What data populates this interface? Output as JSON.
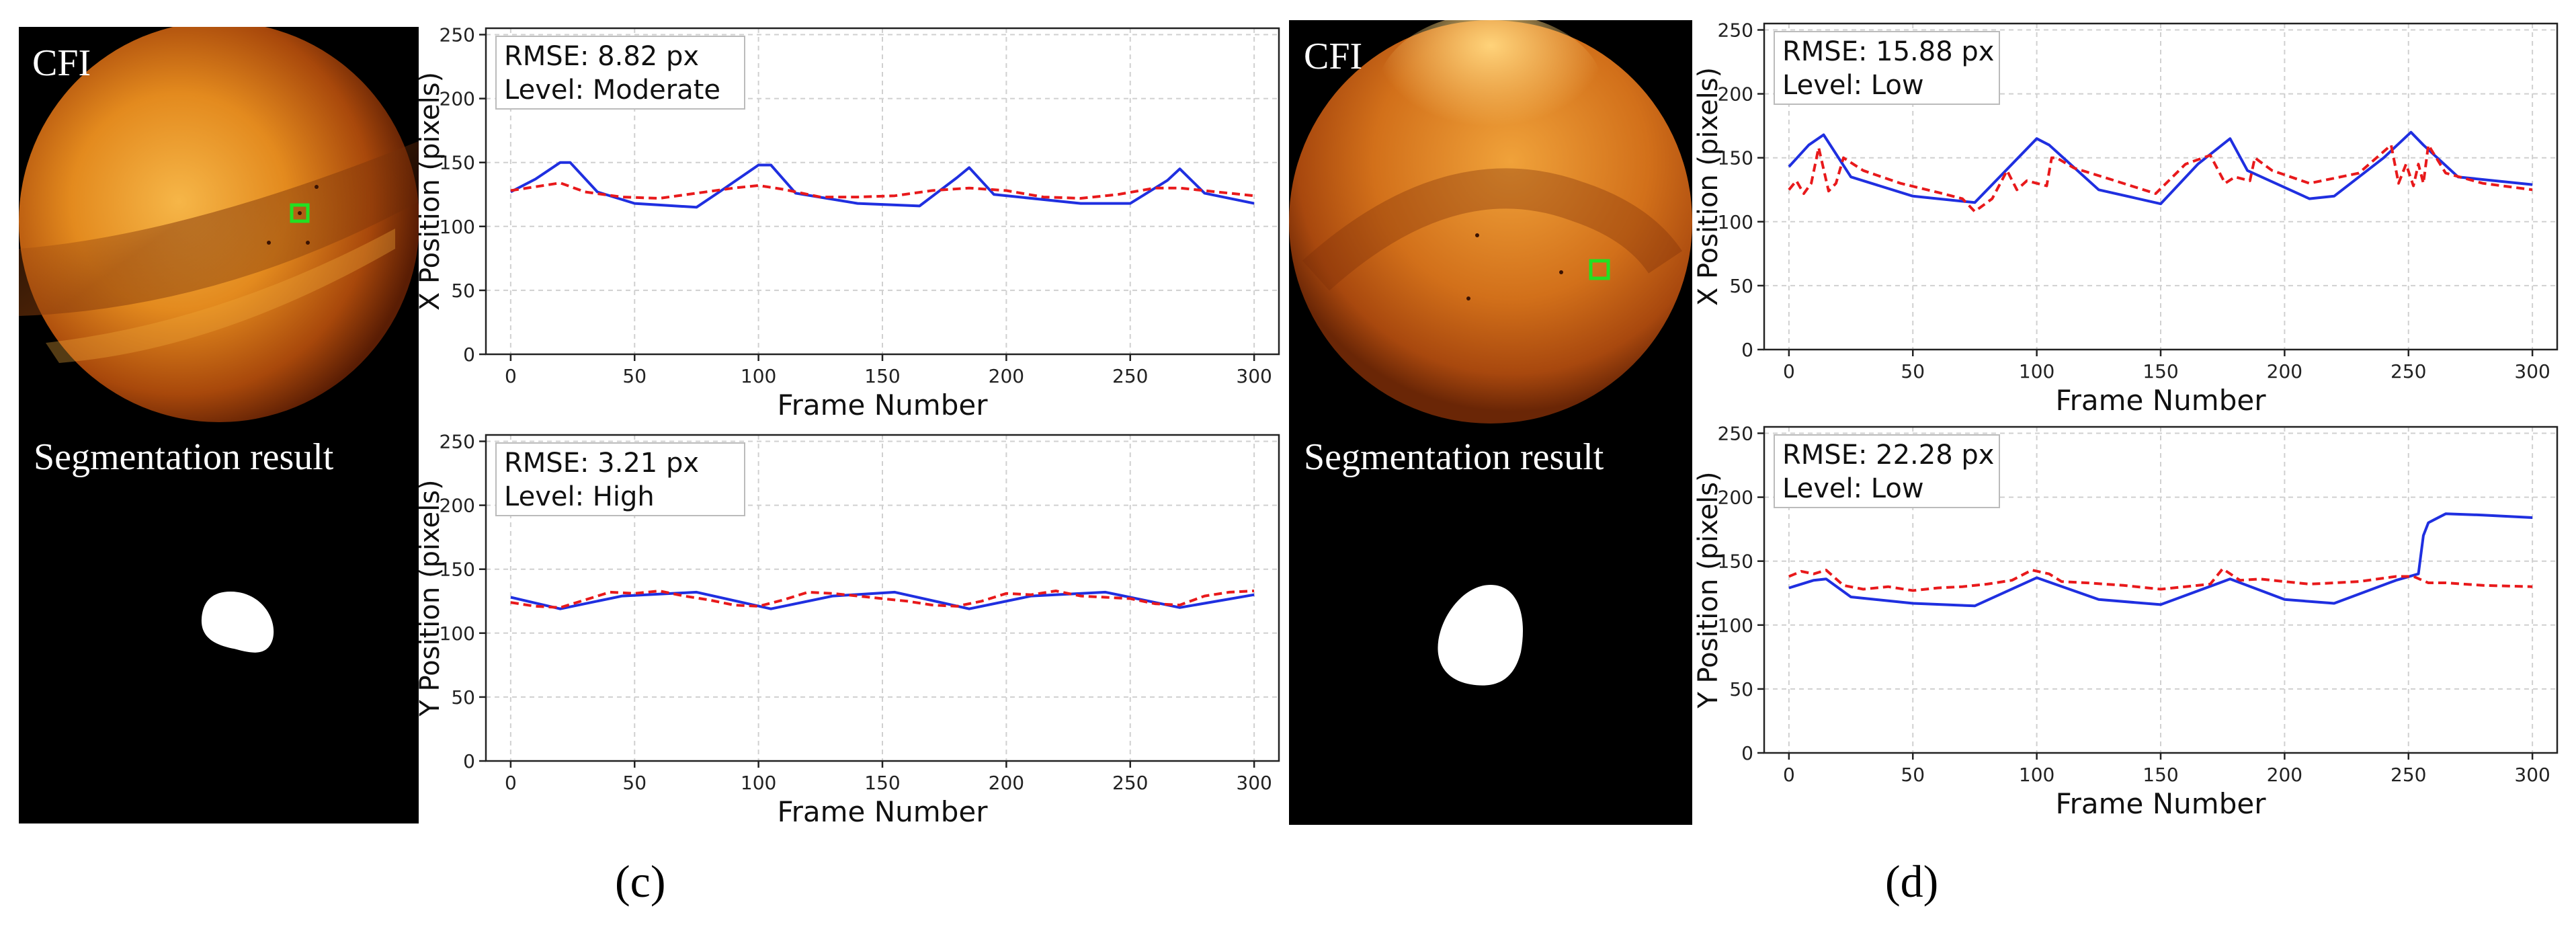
{
  "figure": {
    "left": {
      "cfi_label": "CFI",
      "segmentation_label": "Segmentation result",
      "caption": "(c)"
    },
    "right": {
      "cfi_label": "CFI",
      "segmentation_label": "Segmentation result",
      "caption": "(d)"
    }
  },
  "colors": {
    "ground_truth": "#1f2fe0",
    "prediction": "#e8191b",
    "marker": "#22e022",
    "fundus_bright": "#f5b43a",
    "fundus_dark": "#5a1d04"
  },
  "chart_data": [
    {
      "type": "line",
      "panel": "c-top",
      "annotation": [
        "RMSE: 8.82 px",
        "Level: Moderate"
      ],
      "xlabel": "Frame Number",
      "ylabel": "X Position (pixels)",
      "xlim": [
        -10,
        310
      ],
      "ylim": [
        0,
        255
      ],
      "xticks": [
        0,
        50,
        100,
        150,
        200,
        250,
        300
      ],
      "yticks": [
        0,
        50,
        100,
        150,
        200,
        250
      ],
      "grid": true,
      "series": [
        {
          "style": "solid",
          "color": "#1f2fe0",
          "x": [
            0,
            10,
            20,
            24,
            35,
            50,
            75,
            85,
            100,
            105,
            115,
            140,
            165,
            180,
            185,
            195,
            230,
            250,
            265,
            270,
            280,
            300
          ],
          "y": [
            127,
            137,
            150,
            150,
            127,
            118,
            115,
            128,
            148,
            148,
            126,
            118,
            116,
            138,
            146,
            125,
            118,
            118,
            136,
            145,
            126,
            118
          ]
        },
        {
          "style": "dashed",
          "color": "#e8191b",
          "x": [
            0,
            10,
            20,
            30,
            45,
            60,
            75,
            90,
            100,
            110,
            125,
            140,
            155,
            170,
            185,
            200,
            215,
            230,
            245,
            260,
            270,
            285,
            300
          ],
          "y": [
            128,
            131,
            134,
            127,
            123,
            122,
            126,
            130,
            132,
            129,
            123,
            123,
            124,
            128,
            130,
            128,
            123,
            122,
            125,
            130,
            130,
            127,
            124
          ]
        }
      ]
    },
    {
      "type": "line",
      "panel": "c-bottom",
      "annotation": [
        "RMSE: 3.21 px",
        "Level: High"
      ],
      "xlabel": "Frame Number",
      "ylabel": "Y Position (pixels)",
      "xlim": [
        -10,
        310
      ],
      "ylim": [
        0,
        255
      ],
      "xticks": [
        0,
        50,
        100,
        150,
        200,
        250,
        300
      ],
      "yticks": [
        0,
        50,
        100,
        150,
        200,
        250
      ],
      "grid": true,
      "series": [
        {
          "style": "solid",
          "color": "#1f2fe0",
          "x": [
            0,
            20,
            45,
            75,
            105,
            130,
            155,
            185,
            210,
            240,
            270,
            300
          ],
          "y": [
            128,
            119,
            129,
            132,
            119,
            129,
            132,
            119,
            129,
            132,
            120,
            130
          ]
        },
        {
          "style": "dashed",
          "color": "#e8191b",
          "x": [
            0,
            10,
            20,
            30,
            40,
            50,
            60,
            70,
            80,
            90,
            100,
            110,
            120,
            130,
            140,
            150,
            160,
            170,
            180,
            190,
            200,
            210,
            220,
            230,
            240,
            250,
            260,
            270,
            280,
            290,
            300
          ],
          "y": [
            124,
            121,
            120,
            126,
            132,
            131,
            133,
            129,
            126,
            122,
            121,
            126,
            132,
            131,
            129,
            127,
            125,
            122,
            121,
            125,
            131,
            130,
            133,
            129,
            128,
            127,
            123,
            122,
            129,
            132,
            133
          ]
        }
      ]
    },
    {
      "type": "line",
      "panel": "d-top",
      "annotation": [
        "RMSE: 15.88 px",
        "Level: Low"
      ],
      "xlabel": "Frame Number",
      "ylabel": "X Position (pixels)",
      "xlim": [
        -10,
        310
      ],
      "ylim": [
        0,
        255
      ],
      "xticks": [
        0,
        50,
        100,
        150,
        200,
        250,
        300
      ],
      "yticks": [
        0,
        50,
        100,
        150,
        200,
        250
      ],
      "grid": true,
      "series": [
        {
          "style": "solid",
          "color": "#1f2fe0",
          "x": [
            0,
            8,
            14,
            25,
            50,
            75,
            90,
            100,
            105,
            125,
            150,
            165,
            178,
            185,
            210,
            220,
            240,
            251,
            256,
            270,
            300
          ],
          "y": [
            143,
            160,
            168,
            135,
            120,
            115,
            145,
            165,
            160,
            125,
            114,
            145,
            165,
            140,
            118,
            120,
            150,
            170,
            160,
            135,
            129
          ]
        },
        {
          "style": "dashed",
          "color": "#e8191b",
          "x": [
            0,
            3,
            6,
            9,
            12,
            16,
            19,
            22,
            30,
            45,
            60,
            70,
            75,
            82,
            88,
            92,
            96,
            100,
            104,
            106,
            108,
            115,
            130,
            148,
            160,
            170,
            176,
            180,
            186,
            188,
            195,
            210,
            230,
            243,
            246,
            249,
            252,
            254,
            256,
            258,
            265,
            280,
            300
          ],
          "y": [
            125,
            132,
            122,
            130,
            158,
            124,
            130,
            150,
            140,
            130,
            123,
            118,
            108,
            118,
            140,
            125,
            132,
            130,
            128,
            150,
            150,
            142,
            133,
            122,
            145,
            152,
            130,
            135,
            132,
            150,
            140,
            130,
            138,
            160,
            130,
            145,
            128,
            145,
            130,
            160,
            138,
            130,
            125
          ]
        }
      ]
    },
    {
      "type": "line",
      "panel": "d-bottom",
      "annotation": [
        "RMSE: 22.28 px",
        "Level: Low"
      ],
      "xlabel": "Frame Number",
      "ylabel": "Y Position (pixels)",
      "xlim": [
        -10,
        310
      ],
      "ylim": [
        0,
        255
      ],
      "xticks": [
        0,
        50,
        100,
        150,
        200,
        250,
        300
      ],
      "yticks": [
        0,
        50,
        100,
        150,
        200,
        250
      ],
      "grid": true,
      "series": [
        {
          "style": "solid",
          "color": "#1f2fe0",
          "x": [
            0,
            10,
            15,
            25,
            50,
            75,
            100,
            125,
            150,
            178,
            200,
            220,
            245,
            254,
            256,
            258,
            260,
            265,
            280,
            300
          ],
          "y": [
            129,
            135,
            136,
            122,
            117,
            115,
            137,
            120,
            116,
            136,
            120,
            117,
            135,
            140,
            170,
            180,
            182,
            187,
            186,
            184
          ]
        },
        {
          "style": "dashed",
          "color": "#e8191b",
          "x": [
            0,
            5,
            10,
            15,
            22,
            30,
            40,
            50,
            60,
            70,
            80,
            90,
            98,
            105,
            110,
            120,
            135,
            150,
            160,
            170,
            175,
            182,
            190,
            210,
            230,
            245,
            252,
            258,
            265,
            280,
            300
          ],
          "y": [
            138,
            142,
            140,
            143,
            131,
            128,
            130,
            127,
            129,
            130,
            132,
            135,
            143,
            140,
            134,
            133,
            131,
            128,
            130,
            132,
            144,
            135,
            136,
            132,
            134,
            138,
            138,
            133,
            133,
            131,
            130
          ]
        }
      ]
    }
  ]
}
